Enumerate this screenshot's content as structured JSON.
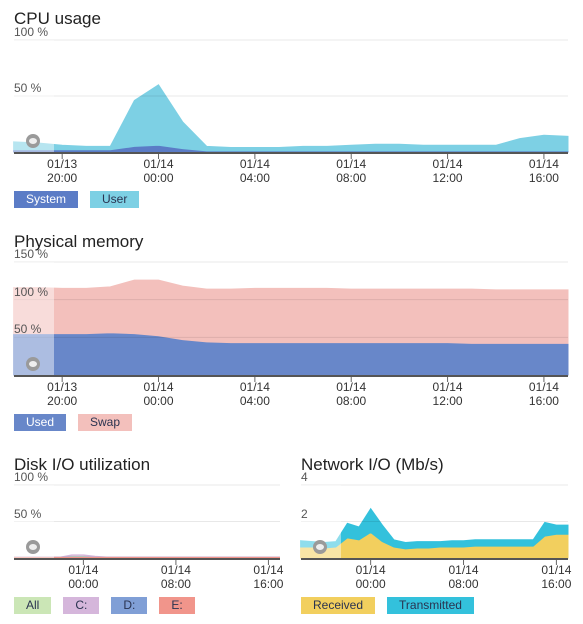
{
  "chart_data": [
    {
      "type": "area",
      "title": "CPU usage",
      "x": [
        "01/13 18:00",
        "01/13 19:00",
        "01/13 20:00",
        "01/13 21:00",
        "01/13 22:00",
        "01/13 23:00",
        "01/14 00:00",
        "01/14 01:00",
        "01/14 02:00",
        "01/14 03:00",
        "01/14 04:00",
        "01/14 05:00",
        "01/14 06:00",
        "01/14 07:00",
        "01/14 08:00",
        "01/14 09:00",
        "01/14 10:00",
        "01/14 11:00",
        "01/14 12:00",
        "01/14 13:00",
        "01/14 14:00",
        "01/14 15:00",
        "01/14 16:00",
        "01/14 17:00"
      ],
      "xlim": [
        "01/13 18:00",
        "01/14 17:00"
      ],
      "xticks": [
        "01/13 20:00",
        "01/14 00:00",
        "01/14 04:00",
        "01/14 08:00",
        "01/14 12:00",
        "01/14 16:00"
      ],
      "ylim": [
        0,
        100
      ],
      "yticks": [
        {
          "value": 50,
          "label": "50 %"
        },
        {
          "value": 100,
          "label": "100 %"
        }
      ],
      "grid": true,
      "series": [
        {
          "name": "System",
          "color": "#5b7cc6",
          "values": [
            2,
            2,
            2,
            2,
            2,
            5,
            6,
            3,
            1,
            1,
            1,
            1,
            1,
            1,
            1,
            1,
            1,
            1,
            1,
            1,
            1,
            1,
            1,
            1
          ]
        },
        {
          "name": "User",
          "color": "#7dd0e4",
          "values": [
            7,
            6,
            4,
            3,
            3,
            41,
            54,
            24,
            4,
            3,
            3,
            3,
            4,
            4,
            5,
            6,
            6,
            5,
            5,
            5,
            5,
            11,
            14,
            13
          ]
        }
      ]
    },
    {
      "type": "area",
      "title": "Physical memory",
      "x": [
        "01/13 18:00",
        "01/13 19:00",
        "01/13 20:00",
        "01/13 21:00",
        "01/13 22:00",
        "01/13 23:00",
        "01/14 00:00",
        "01/14 01:00",
        "01/14 02:00",
        "01/14 03:00",
        "01/14 04:00",
        "01/14 05:00",
        "01/14 06:00",
        "01/14 07:00",
        "01/14 08:00",
        "01/14 09:00",
        "01/14 10:00",
        "01/14 11:00",
        "01/14 12:00",
        "01/14 13:00",
        "01/14 14:00",
        "01/14 15:00",
        "01/14 16:00",
        "01/14 17:00"
      ],
      "xlim": [
        "01/13 18:00",
        "01/14 17:00"
      ],
      "xticks": [
        "01/13 20:00",
        "01/14 00:00",
        "01/14 04:00",
        "01/14 08:00",
        "01/14 12:00",
        "01/14 16:00"
      ],
      "ylim": [
        0,
        150
      ],
      "yticks": [
        {
          "value": 50,
          "label": "50 %"
        },
        {
          "value": 100,
          "label": "100 %"
        },
        {
          "value": 150,
          "label": "150 %"
        }
      ],
      "grid": true,
      "series": [
        {
          "name": "Used",
          "color": "#6887c9",
          "values": [
            55,
            55,
            55,
            55,
            56,
            55,
            52,
            47,
            44,
            43,
            43,
            43,
            43,
            43,
            43,
            43,
            43,
            43,
            43,
            42,
            42,
            42,
            42,
            42
          ]
        },
        {
          "name": "Swap",
          "color": "#f3c0bc",
          "values": [
            61,
            61,
            60,
            60,
            61,
            71,
            74,
            71,
            70,
            71,
            72,
            72,
            72,
            72,
            71,
            71,
            71,
            71,
            71,
            72,
            71,
            71,
            71,
            71
          ]
        }
      ]
    },
    {
      "type": "line",
      "title": "Disk I/O utilization",
      "x": [
        "01/13 18:00",
        "01/13 19:00",
        "01/13 20:00",
        "01/13 21:00",
        "01/13 22:00",
        "01/13 23:00",
        "01/14 00:00",
        "01/14 01:00",
        "01/14 02:00",
        "01/14 03:00",
        "01/14 04:00",
        "01/14 05:00",
        "01/14 06:00",
        "01/14 07:00",
        "01/14 08:00",
        "01/14 09:00",
        "01/14 10:00",
        "01/14 11:00",
        "01/14 12:00",
        "01/14 13:00",
        "01/14 14:00",
        "01/14 15:00",
        "01/14 16:00",
        "01/14 17:00"
      ],
      "xlim": [
        "01/13 18:00",
        "01/14 17:00"
      ],
      "xticks": [
        "01/14 00:00",
        "01/14 08:00",
        "01/14 16:00"
      ],
      "ylim": [
        0,
        100
      ],
      "yticks": [
        {
          "value": 50,
          "label": "50 %"
        },
        {
          "value": 100,
          "label": "100 %"
        }
      ],
      "grid": true,
      "series": [
        {
          "name": "All",
          "color": "#cbe6b6",
          "values": [
            1,
            1,
            1,
            1,
            1,
            2,
            2,
            1,
            1,
            1,
            1,
            1,
            1,
            1,
            1,
            1,
            1,
            1,
            1,
            1,
            1,
            1,
            1,
            1
          ]
        },
        {
          "name": "C:",
          "color": "#d5b6db",
          "values": [
            1,
            1,
            1,
            1,
            1,
            4,
            4,
            2,
            1,
            1,
            1,
            1,
            1,
            1,
            1,
            1,
            1,
            1,
            1,
            1,
            1,
            1,
            1,
            1
          ]
        },
        {
          "name": "D:",
          "color": "#809fd6",
          "values": [
            0.5,
            0.5,
            0.5,
            0.5,
            0.5,
            1,
            1,
            0.5,
            0.5,
            0.5,
            0.5,
            0.5,
            0.5,
            0.5,
            0.5,
            0.5,
            0.5,
            0.5,
            0.5,
            0.5,
            0.5,
            0.5,
            0.5,
            0.5
          ]
        },
        {
          "name": "E:",
          "color": "#f1958b",
          "values": [
            0.5,
            0.5,
            0.5,
            0.5,
            0.5,
            0.5,
            0.5,
            0.5,
            0.5,
            0.5,
            0.5,
            0.5,
            0.5,
            0.5,
            0.5,
            0.5,
            0.5,
            0.5,
            0.5,
            0.5,
            0.5,
            0.5,
            0.5,
            0.5
          ]
        }
      ]
    },
    {
      "type": "area",
      "title": "Network I/O (Mb/s)",
      "x": [
        "01/13 18:00",
        "01/13 19:00",
        "01/13 20:00",
        "01/13 21:00",
        "01/13 22:00",
        "01/13 23:00",
        "01/14 00:00",
        "01/14 01:00",
        "01/14 02:00",
        "01/14 03:00",
        "01/14 04:00",
        "01/14 05:00",
        "01/14 06:00",
        "01/14 07:00",
        "01/14 08:00",
        "01/14 09:00",
        "01/14 10:00",
        "01/14 11:00",
        "01/14 12:00",
        "01/14 13:00",
        "01/14 14:00",
        "01/14 15:00",
        "01/14 16:00",
        "01/14 17:00"
      ],
      "xlim": [
        "01/13 18:00",
        "01/14 17:00"
      ],
      "xticks": [
        "01/14 00:00",
        "01/14 08:00",
        "01/14 16:00"
      ],
      "ylim": [
        0,
        4
      ],
      "yticks": [
        2,
        4
      ],
      "grid": true,
      "series": [
        {
          "name": "Received",
          "color": "#f2cf5e",
          "values": [
            0.6,
            0.6,
            0.55,
            0.6,
            1.1,
            1.0,
            1.4,
            0.9,
            0.6,
            0.5,
            0.55,
            0.55,
            0.6,
            0.6,
            0.6,
            0.65,
            0.65,
            0.65,
            0.65,
            0.65,
            0.65,
            1.2,
            1.3,
            1.3
          ]
        },
        {
          "name": "Transmitted",
          "color": "#33c1dc",
          "values": [
            0.35,
            0.3,
            0.3,
            0.3,
            0.8,
            0.7,
            1.3,
            0.9,
            0.4,
            0.35,
            0.35,
            0.35,
            0.3,
            0.35,
            0.35,
            0.35,
            0.35,
            0.35,
            0.35,
            0.35,
            0.35,
            0.75,
            0.5,
            0.5
          ]
        }
      ]
    }
  ]
}
